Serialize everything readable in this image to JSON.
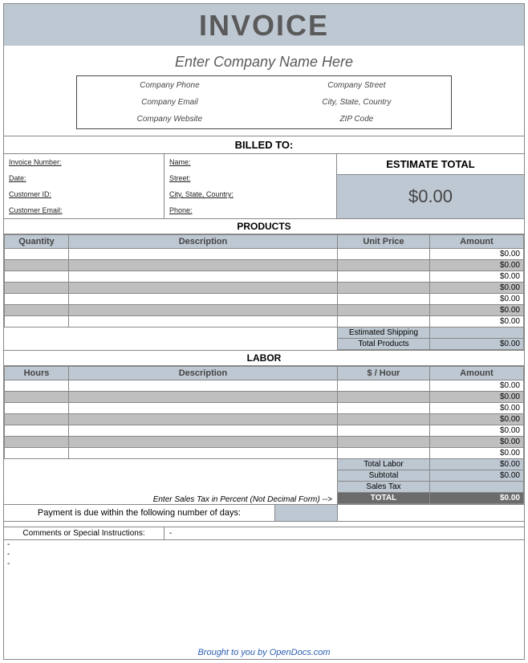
{
  "title": "INVOICE",
  "company": {
    "name_placeholder": "Enter Company Name Here",
    "phone": "Company Phone",
    "email": "Company Email",
    "website": "Company Website",
    "street": "Company Street",
    "city": "City, State, Country",
    "zip": "ZIP Code"
  },
  "billed_to_label": "BILLED TO:",
  "invoice_fields": {
    "number": "Invoice Number:",
    "date": "Date:",
    "customer_id": "Customer ID:",
    "customer_email": "Customer Email:"
  },
  "client_fields": {
    "name": "Name:",
    "street": "Street:",
    "city": "City, State, Country:",
    "phone": "Phone:"
  },
  "estimate": {
    "label": "ESTIMATE TOTAL",
    "value": "$0.00"
  },
  "products": {
    "section": "PRODUCTS",
    "cols": {
      "qty": "Quantity",
      "desc": "Description",
      "price": "Unit Price",
      "amt": "Amount"
    },
    "rows": [
      {
        "amt": "$0.00"
      },
      {
        "amt": "$0.00"
      },
      {
        "amt": "$0.00"
      },
      {
        "amt": "$0.00"
      },
      {
        "amt": "$0.00"
      },
      {
        "amt": "$0.00"
      },
      {
        "amt": "$0.00"
      }
    ],
    "shipping_label": "Estimated Shipping",
    "total_label": "Total Products",
    "total_value": "$0.00"
  },
  "labor": {
    "section": "LABOR",
    "cols": {
      "hours": "Hours",
      "desc": "Description",
      "rate": "$ / Hour",
      "amt": "Amount"
    },
    "rows": [
      {
        "amt": "$0.00"
      },
      {
        "amt": "$0.00"
      },
      {
        "amt": "$0.00"
      },
      {
        "amt": "$0.00"
      },
      {
        "amt": "$0.00"
      },
      {
        "amt": "$0.00"
      },
      {
        "amt": "$0.00"
      }
    ],
    "total_labor_label": "Total Labor",
    "total_labor_value": "$0.00",
    "subtotal_label": "Subtotal",
    "subtotal_value": "$0.00",
    "tax_note": "Enter Sales Tax in Percent (Not Decimal Form)   -->",
    "tax_label": "Sales Tax",
    "grand_label": "TOTAL",
    "grand_value": "$0.00"
  },
  "payment": {
    "label": "Payment is due within the following number of days:"
  },
  "comments": {
    "label": "Comments or Special Instructions:",
    "dash": "-",
    "lines": [
      "-",
      "-",
      "-"
    ]
  },
  "footer": "Brought to you by OpenDocs.com",
  "colors": {
    "header_bg": "#bec8d2",
    "alt_row": "#bfbfbf",
    "total_dark": "#6b6b6b",
    "border": "#888888",
    "text_gray": "#5a5a5a",
    "link": "#2a5db0"
  }
}
